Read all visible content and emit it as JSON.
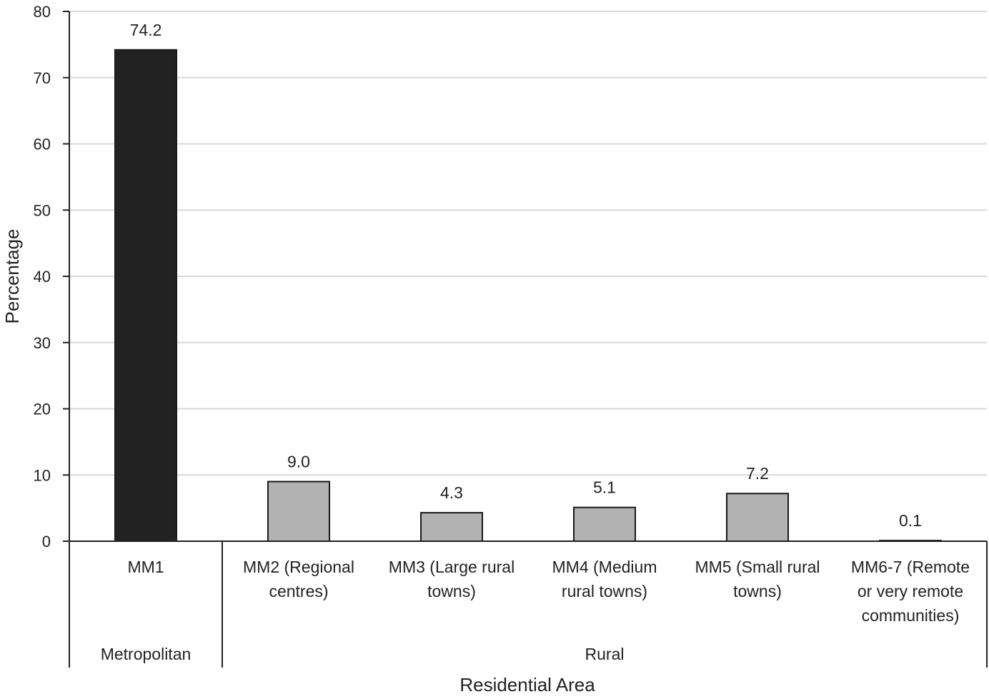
{
  "chart_data": {
    "type": "bar",
    "title": "",
    "xlabel": "Residential Area",
    "ylabel": "Percentage",
    "ylim": [
      0,
      80
    ],
    "yticks": [
      0,
      10,
      20,
      30,
      40,
      50,
      60,
      70,
      80
    ],
    "grid": true,
    "legend": "none",
    "categories": [
      "MM1",
      "MM2 (Regional centres)",
      "MM3 (Large rural towns)",
      "MM4 (Medium rural towns)",
      "MM5 (Small rural towns)",
      "MM6-7 (Remote or very remote communities)"
    ],
    "category_lines": [
      [
        "MM1"
      ],
      [
        "MM2 (Regional",
        "centres)"
      ],
      [
        "MM3 (Large rural",
        "towns)"
      ],
      [
        "MM4 (Medium",
        "rural towns)"
      ],
      [
        "MM5 (Small rural",
        "towns)"
      ],
      [
        "MM6-7 (Remote",
        "or very remote",
        "communities)"
      ]
    ],
    "values": [
      74.2,
      9.0,
      4.3,
      5.1,
      7.2,
      0.1
    ],
    "value_labels": [
      "74.2",
      "9.0",
      "4.3",
      "5.1",
      "7.2",
      "0.1"
    ],
    "groups": [
      {
        "label": "Metropolitan",
        "categories": [
          0
        ]
      },
      {
        "label": "Rural",
        "categories": [
          1,
          2,
          3,
          4,
          5
        ]
      }
    ],
    "colors": {
      "metropolitan_bar": "#222222",
      "rural_bar": "#b2b2b2",
      "bar_stroke": "#1a1a1a",
      "grid": "#d9d9d9",
      "axis": "#222222"
    }
  }
}
